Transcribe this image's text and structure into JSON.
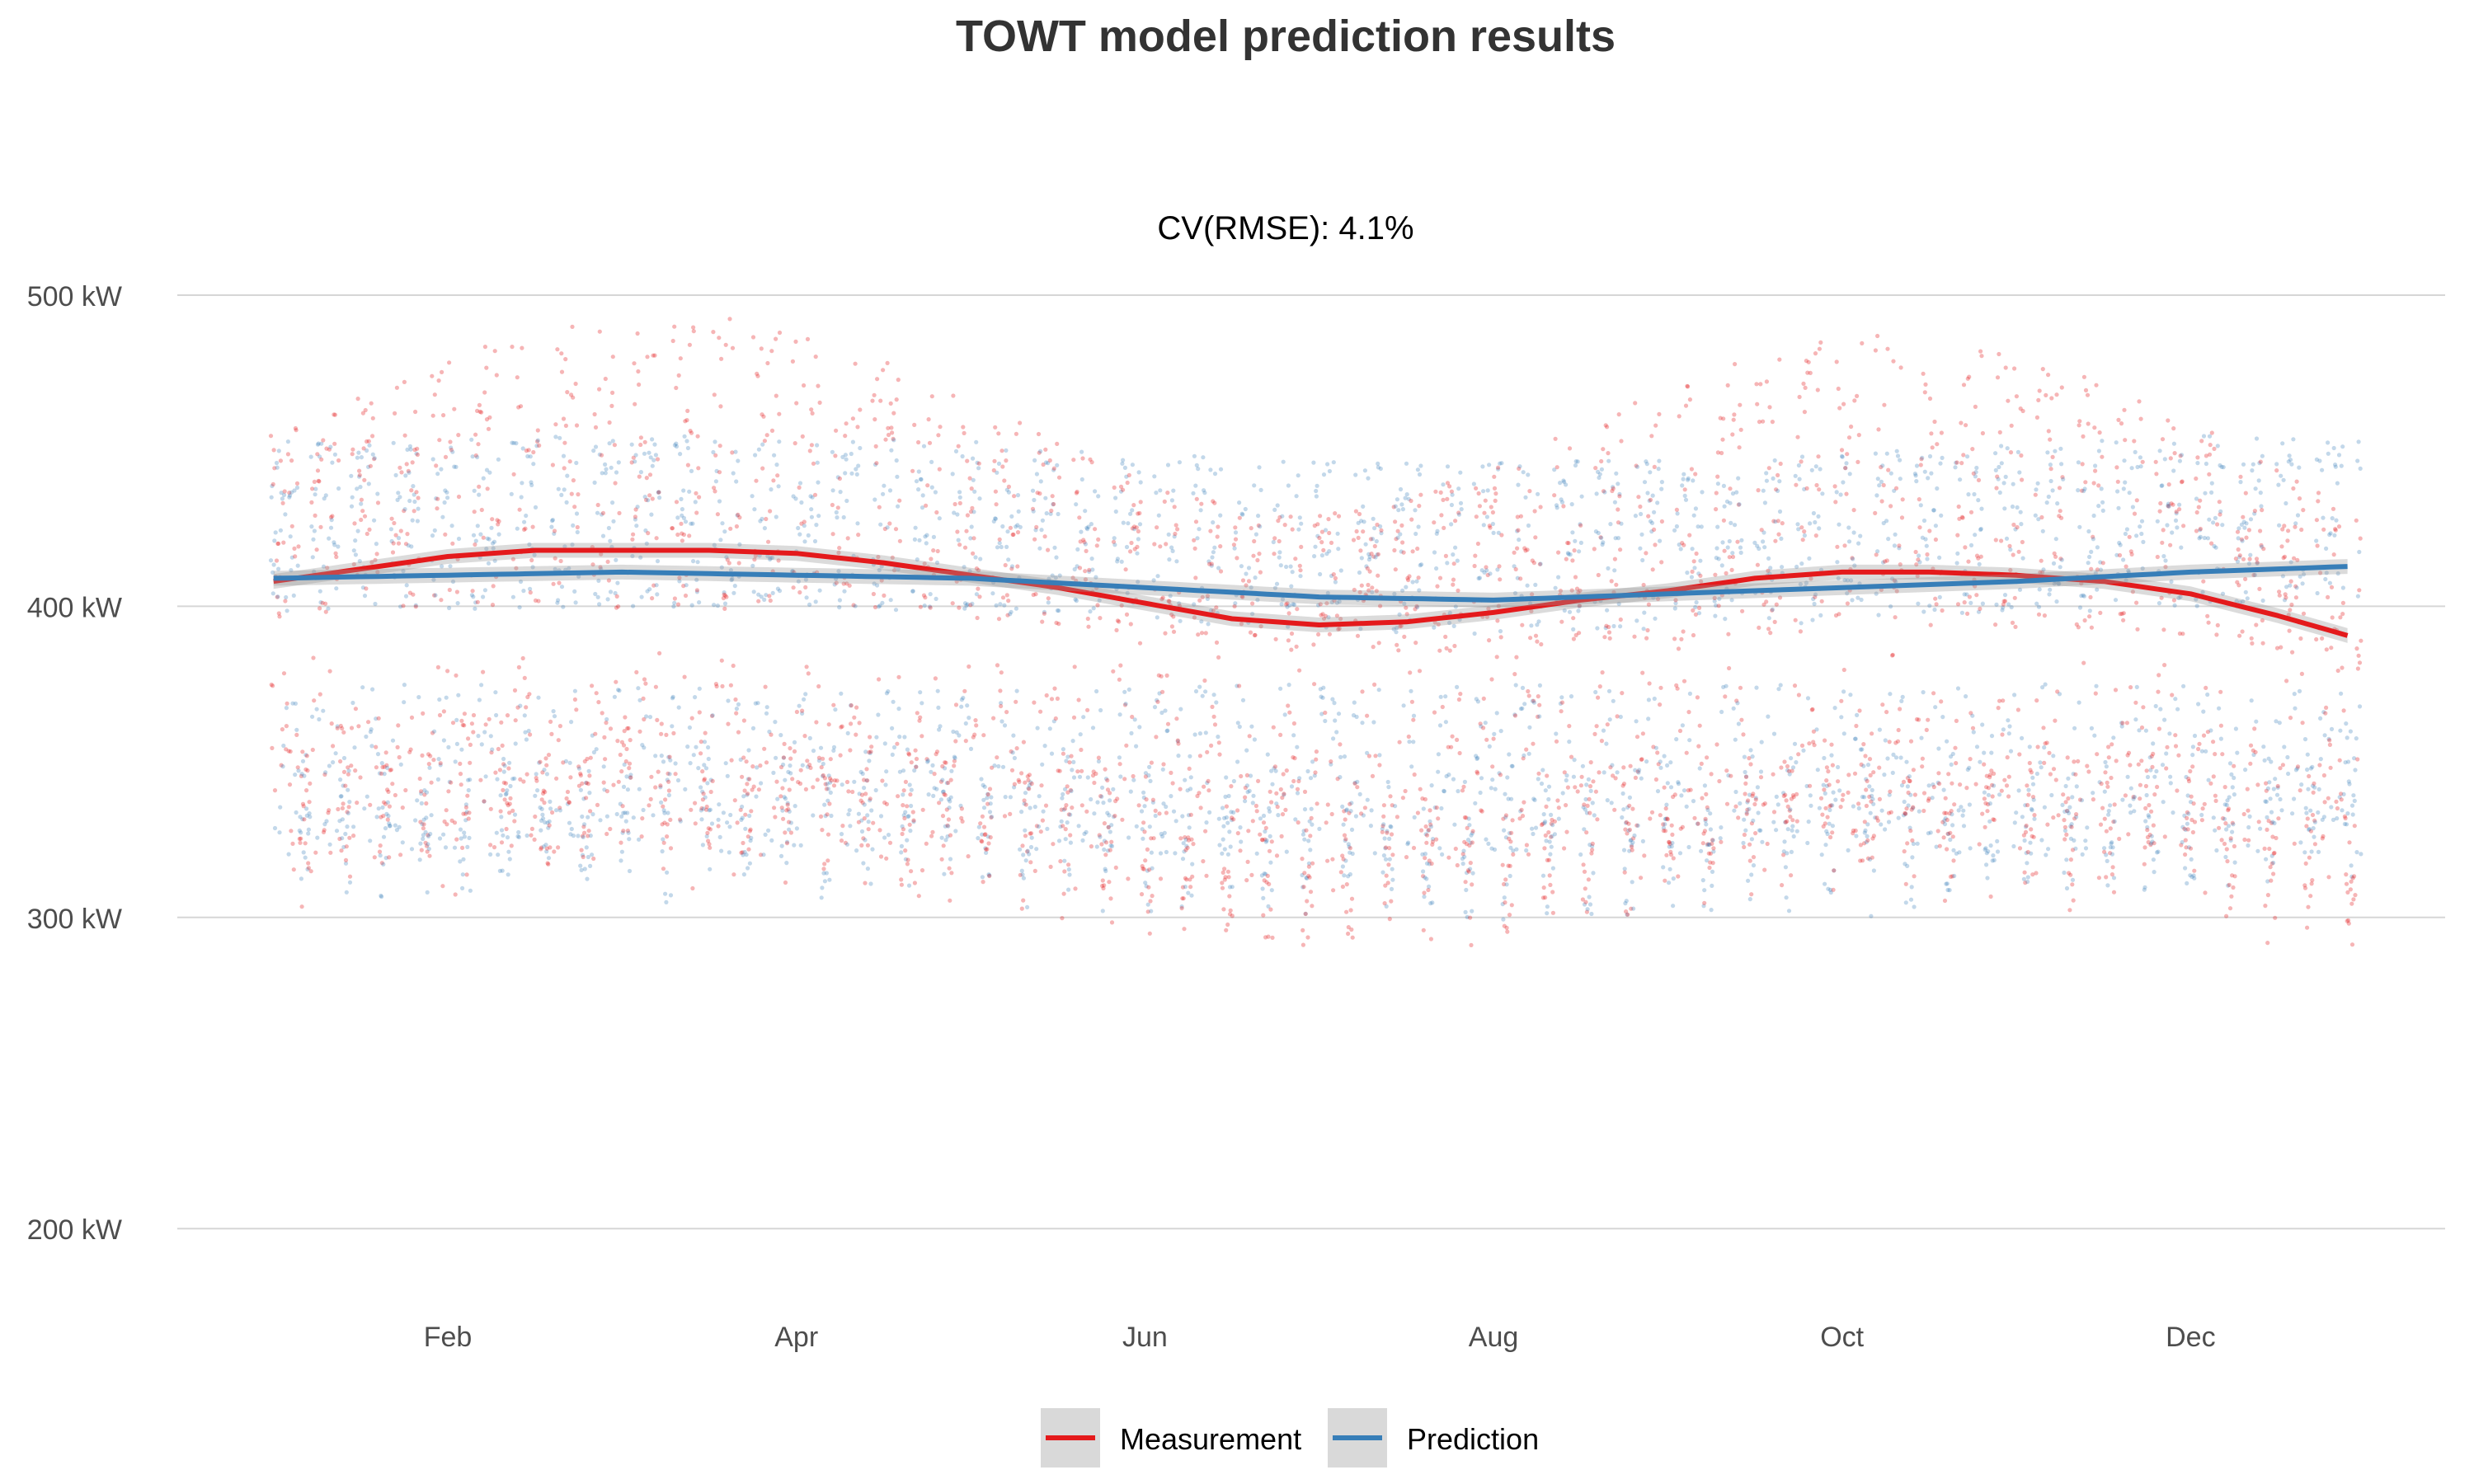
{
  "chart_data": {
    "type": "scatter",
    "title": "TOWT model prediction results",
    "annotation": "CV(RMSE): 4.1%",
    "xlabel": "",
    "ylabel": "",
    "x_ticks": [
      {
        "label": "Feb",
        "month": 1
      },
      {
        "label": "Apr",
        "month": 3
      },
      {
        "label": "Jun",
        "month": 5
      },
      {
        "label": "Aug",
        "month": 7
      },
      {
        "label": "Oct",
        "month": 9
      },
      {
        "label": "Dec",
        "month": 11
      }
    ],
    "y_ticks": [
      {
        "label": "200 kW",
        "value": 200
      },
      {
        "label": "300 kW",
        "value": 300
      },
      {
        "label": "400 kW",
        "value": 400
      },
      {
        "label": "500 kW",
        "value": 500
      }
    ],
    "xlim_months": [
      -0.15,
      11.85
    ],
    "ylim": [
      175,
      575
    ],
    "grid": true,
    "legend_position": "bottom",
    "series": [
      {
        "name": "Measurement",
        "color": "#e41a1c",
        "smooth_months": [
          0.0,
          0.5,
          1.0,
          1.5,
          2.0,
          2.5,
          3.0,
          3.5,
          4.0,
          4.5,
          5.0,
          5.5,
          6.0,
          6.5,
          7.0,
          7.5,
          8.0,
          8.5,
          9.0,
          9.5,
          10.0,
          10.5,
          11.0,
          11.5,
          12.0
        ],
        "smooth_values": [
          408,
          412,
          416,
          418,
          418,
          418,
          417,
          414,
          410,
          406,
          401,
          396,
          394,
          395,
          398,
          402,
          405,
          409,
          411,
          411,
          410,
          408,
          404,
          397,
          389
        ]
      },
      {
        "name": "Prediction",
        "color": "#377eb8",
        "smooth_months": [
          0.0,
          1.0,
          2.0,
          3.0,
          4.0,
          5.0,
          6.0,
          7.0,
          8.0,
          9.0,
          10.0,
          11.0,
          12.0
        ],
        "smooth_values": [
          409,
          410,
          411,
          410,
          409,
          406,
          403,
          402,
          404,
          406,
          408,
          411,
          413
        ]
      }
    ]
  }
}
